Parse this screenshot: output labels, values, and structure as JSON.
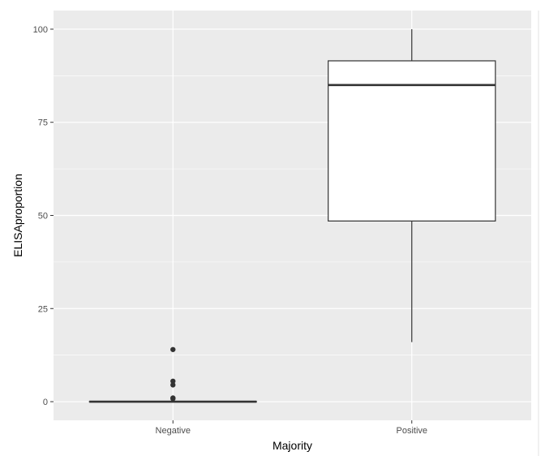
{
  "chart_data": {
    "type": "boxplot",
    "xlabel": "Majority",
    "ylabel": "ELISAproportion",
    "categories": [
      "Negative",
      "Positive"
    ],
    "ylim": [
      -5,
      105
    ],
    "yticks": [
      0,
      25,
      50,
      75,
      100
    ],
    "ytick_labels": [
      "0",
      "25",
      "50",
      "75",
      "100"
    ],
    "boxes": [
      {
        "category": "Negative",
        "whisker_low": 0,
        "q1": 0,
        "median": 0,
        "q3": 0,
        "whisker_high": 0,
        "outliers": [
          0.8,
          1.0,
          4.5,
          5.5,
          14
        ]
      },
      {
        "category": "Positive",
        "whisker_low": 16,
        "q1": 48.5,
        "median": 85,
        "q3": 91.5,
        "whisker_high": 100,
        "outliers": []
      }
    ],
    "grid": true,
    "colors": {
      "panel": "#ebebeb",
      "grid": "#ffffff",
      "box_fill": "#ffffff",
      "box_line": "#333333"
    }
  }
}
